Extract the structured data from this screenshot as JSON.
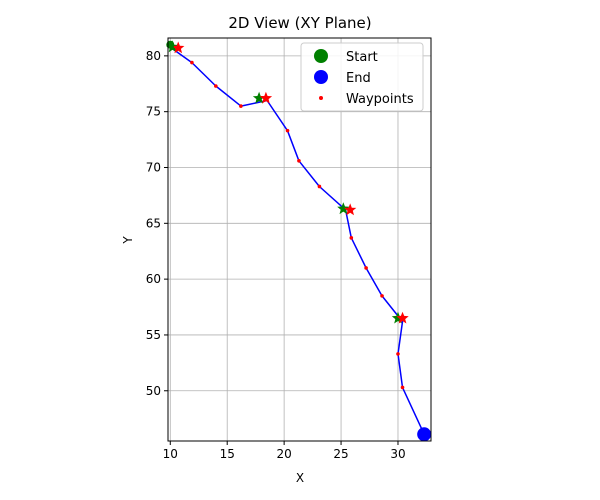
{
  "chart_data": {
    "type": "line",
    "title": "2D View (XY Plane)",
    "xlabel": "X",
    "ylabel": "Y",
    "xlim": [
      9.8,
      32.9
    ],
    "ylim": [
      45.5,
      81.6
    ],
    "xticks": [
      "10",
      "15",
      "20",
      "25",
      "30"
    ],
    "yticks": [
      "50",
      "55",
      "60",
      "65",
      "70",
      "75",
      "80"
    ],
    "grid": true,
    "legend": {
      "placement": "upper right",
      "entries": [
        {
          "label": "Start",
          "color": "#008000",
          "marker": "circle"
        },
        {
          "label": "End",
          "color": "#0000ff",
          "marker": "circle"
        },
        {
          "label": "Waypoints",
          "color": "#ff0000",
          "marker": "dot"
        }
      ]
    },
    "path": {
      "color": "#0000ff",
      "points": [
        {
          "x": 10.1,
          "y": 80.7
        },
        {
          "x": 11.9,
          "y": 79.4
        },
        {
          "x": 14.0,
          "y": 77.3
        },
        {
          "x": 16.2,
          "y": 75.5
        },
        {
          "x": 18.5,
          "y": 76.0
        },
        {
          "x": 20.3,
          "y": 73.3
        },
        {
          "x": 21.3,
          "y": 70.6
        },
        {
          "x": 23.1,
          "y": 68.3
        },
        {
          "x": 25.4,
          "y": 66.2
        },
        {
          "x": 25.9,
          "y": 63.7
        },
        {
          "x": 27.2,
          "y": 61.0
        },
        {
          "x": 28.6,
          "y": 58.5
        },
        {
          "x": 30.4,
          "y": 56.2
        },
        {
          "x": 30.0,
          "y": 53.3
        },
        {
          "x": 30.4,
          "y": 50.3
        },
        {
          "x": 32.3,
          "y": 46.1
        }
      ]
    },
    "waypoints": [
      {
        "x": 11.9,
        "y": 79.4
      },
      {
        "x": 14.0,
        "y": 77.3
      },
      {
        "x": 16.2,
        "y": 75.5
      },
      {
        "x": 20.3,
        "y": 73.3
      },
      {
        "x": 21.3,
        "y": 70.6
      },
      {
        "x": 23.1,
        "y": 68.3
      },
      {
        "x": 25.9,
        "y": 63.7
      },
      {
        "x": 27.2,
        "y": 61.0
      },
      {
        "x": 28.6,
        "y": 58.5
      },
      {
        "x": 30.0,
        "y": 53.3
      },
      {
        "x": 30.4,
        "y": 50.3
      }
    ],
    "green_stars": [
      {
        "x": 10.2,
        "y": 80.8
      },
      {
        "x": 17.8,
        "y": 76.2
      },
      {
        "x": 25.2,
        "y": 66.3
      },
      {
        "x": 30.0,
        "y": 56.5
      }
    ],
    "red_stars": [
      {
        "x": 10.7,
        "y": 80.7
      },
      {
        "x": 18.4,
        "y": 76.2
      },
      {
        "x": 25.8,
        "y": 66.2
      },
      {
        "x": 30.4,
        "y": 56.5
      }
    ],
    "start": {
      "x": 10.0,
      "y": 81.0,
      "color": "#008000"
    },
    "end": {
      "x": 32.3,
      "y": 46.1,
      "color": "#0000ff"
    }
  }
}
